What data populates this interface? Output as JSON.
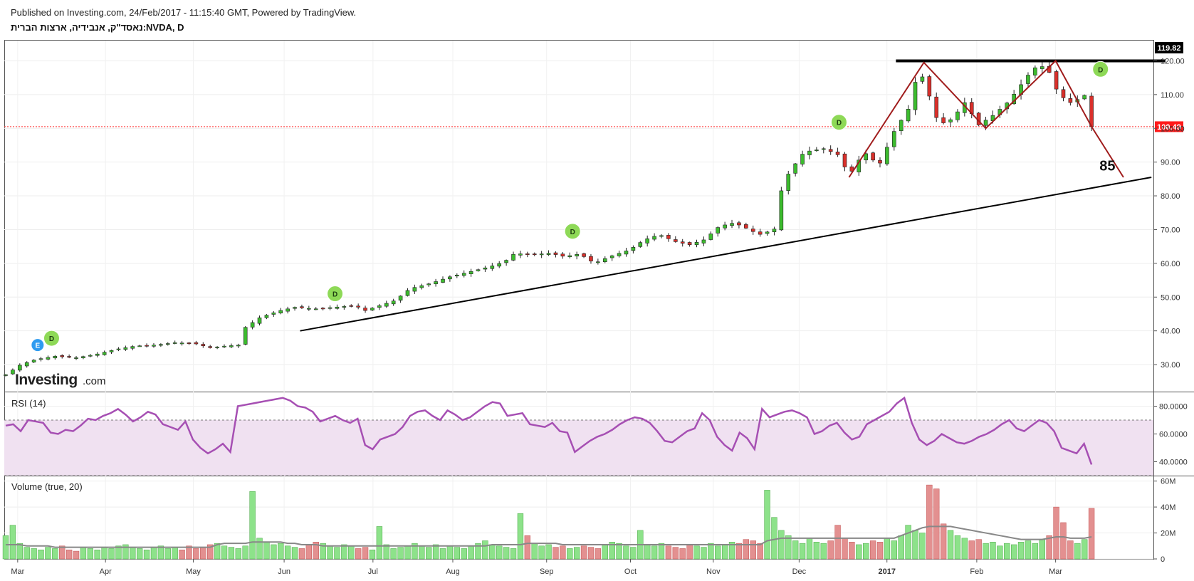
{
  "header": {
    "published": "Published on Investing.com, 24/Feb/2017 - 11:15:40 GMT, Powered by TradingView.",
    "symbol_title": "נאסד\"ק, אנבידיה, ארצות הברית:NVDA, D"
  },
  "watermark": {
    "brand": "Investing",
    "suffix": ".com"
  },
  "colors": {
    "up": "#3cbc2e",
    "down": "#d9302b",
    "rsi_line": "#a64fb3",
    "rsi_band": "#f0e1f1",
    "volume_up": "#8de28a",
    "volume_down": "#e39090",
    "volume_ma": "#888888",
    "pattern": "#a01c1c",
    "trendline": "#000000",
    "dividend_badge": "#8ed957",
    "price_tag_current": "#ff1a1a"
  },
  "chart_data": [
    {
      "type": "candlestick",
      "title": "NVDA, D",
      "ylim": [
        22,
        126
      ],
      "y_ticks": [
        "120.00",
        "110.00",
        "100.00",
        "90.00",
        "80.00",
        "70.00",
        "60.00",
        "50.00",
        "40.00",
        "30.00"
      ],
      "y_tick_values": [
        120,
        110,
        100,
        90,
        80,
        70,
        60,
        50,
        40,
        30
      ],
      "x_months": [
        {
          "label": "Mar",
          "t": 0.12
        },
        {
          "label": "Apr",
          "t": 1.0
        },
        {
          "label": "May",
          "t": 1.88
        },
        {
          "label": "Jun",
          "t": 2.79
        },
        {
          "label": "Jul",
          "t": 3.68
        },
        {
          "label": "Aug",
          "t": 4.48
        },
        {
          "label": "Sep",
          "t": 5.42
        },
        {
          "label": "Oct",
          "t": 6.26
        },
        {
          "label": "Nov",
          "t": 7.09
        },
        {
          "label": "Dec",
          "t": 7.95
        },
        {
          "label": "2017",
          "t": 8.83
        },
        {
          "label": "Feb",
          "t": 9.73
        },
        {
          "label": "Mar",
          "t": 10.52
        }
      ],
      "price_points": [
        [
          0.0,
          27
        ],
        [
          0.15,
          30
        ],
        [
          0.3,
          31.5
        ],
        [
          0.5,
          32.5
        ],
        [
          0.7,
          32
        ],
        [
          0.9,
          33
        ],
        [
          1.1,
          34.5
        ],
        [
          1.3,
          35.5
        ],
        [
          1.5,
          35.8
        ],
        [
          1.7,
          36.5
        ],
        [
          1.9,
          36.2
        ],
        [
          2.05,
          35
        ],
        [
          2.2,
          35.5
        ],
        [
          2.35,
          35.8
        ],
        [
          2.4,
          41
        ],
        [
          2.55,
          44
        ],
        [
          2.75,
          46
        ],
        [
          2.9,
          47
        ],
        [
          3.1,
          46.5
        ],
        [
          3.3,
          47
        ],
        [
          3.5,
          47.5
        ],
        [
          3.6,
          46
        ],
        [
          3.75,
          47.5
        ],
        [
          3.9,
          49
        ],
        [
          4.05,
          52.5
        ],
        [
          4.25,
          54
        ],
        [
          4.45,
          56
        ],
        [
          4.65,
          57.5
        ],
        [
          4.85,
          59
        ],
        [
          5.0,
          60.5
        ],
        [
          5.1,
          63
        ],
        [
          5.25,
          62.5
        ],
        [
          5.45,
          63
        ],
        [
          5.6,
          62
        ],
        [
          5.75,
          62.8
        ],
        [
          5.9,
          60
        ],
        [
          6.05,
          62
        ],
        [
          6.25,
          64
        ],
        [
          6.4,
          67
        ],
        [
          6.55,
          68.5
        ],
        [
          6.7,
          66.5
        ],
        [
          6.85,
          65.5
        ],
        [
          7.0,
          67
        ],
        [
          7.15,
          71
        ],
        [
          7.3,
          72
        ],
        [
          7.45,
          70
        ],
        [
          7.55,
          68.5
        ],
        [
          7.7,
          70
        ],
        [
          7.75,
          80
        ],
        [
          7.85,
          87
        ],
        [
          8.0,
          93
        ],
        [
          8.2,
          94
        ],
        [
          8.35,
          92
        ],
        [
          8.45,
          86
        ],
        [
          8.6,
          93
        ],
        [
          8.75,
          89
        ],
        [
          8.9,
          99
        ],
        [
          9.05,
          106
        ],
        [
          9.15,
          118
        ],
        [
          9.25,
          110
        ],
        [
          9.35,
          101
        ],
        [
          9.5,
          103
        ],
        [
          9.6,
          108
        ],
        [
          9.75,
          101
        ],
        [
          9.9,
          104
        ],
        [
          10.05,
          108
        ],
        [
          10.15,
          112
        ],
        [
          10.25,
          116
        ],
        [
          10.35,
          119
        ],
        [
          10.45,
          117
        ],
        [
          10.55,
          110
        ],
        [
          10.7,
          107
        ],
        [
          10.8,
          111
        ],
        [
          10.88,
          100.5
        ]
      ],
      "current_price": "119.82",
      "last_price": "100.49",
      "resistance_level": 120,
      "annotations": {
        "target_label": "85",
        "dividend_markers": [
          "D",
          "D",
          "D",
          "D",
          "D"
        ],
        "earnings_marker": "E"
      }
    },
    {
      "type": "line",
      "title": "RSI (14)",
      "ylim": [
        30,
        90
      ],
      "y_ticks": [
        "80.0000",
        "60.0000",
        "40.0000"
      ],
      "y_tick_values": [
        80,
        60,
        40
      ],
      "bands": [
        30,
        70
      ],
      "values": [
        66,
        67,
        62,
        70,
        69,
        68,
        61,
        60,
        63,
        62,
        66,
        71,
        70,
        73,
        75,
        78,
        74,
        69,
        72,
        76,
        74,
        67,
        65,
        63,
        69,
        56,
        50,
        46,
        49,
        53,
        47,
        80,
        81,
        82,
        83,
        84,
        85,
        86,
        84,
        80,
        79,
        76,
        69,
        71,
        73,
        70,
        68,
        71,
        52,
        49,
        56,
        58,
        60,
        65,
        73,
        76,
        77,
        73,
        70,
        77,
        74,
        70,
        72,
        76,
        80,
        83,
        82,
        73,
        74,
        75,
        67,
        66,
        65,
        68,
        62,
        61,
        47,
        51,
        55,
        58,
        60,
        63,
        67,
        70,
        72,
        71,
        68,
        62,
        55,
        54,
        58,
        62,
        64,
        75,
        70,
        58,
        52,
        48,
        61,
        57,
        49,
        78,
        72,
        74,
        76,
        77,
        75,
        72,
        60,
        62,
        66,
        68,
        61,
        56,
        58,
        67,
        70,
        73,
        76,
        82,
        86,
        68,
        56,
        52,
        55,
        60,
        57,
        54,
        53,
        55,
        58,
        60,
        63,
        67,
        70,
        64,
        62,
        66,
        70,
        68,
        62,
        50,
        48,
        46,
        53,
        38
      ]
    },
    {
      "type": "bar",
      "title": "Volume (true, 20)",
      "ylim": [
        0,
        62
      ],
      "y_ticks": [
        "60M",
        "40M",
        "20M",
        "0"
      ],
      "y_tick_values": [
        60,
        40,
        20,
        0
      ],
      "values": [
        18,
        26,
        12,
        9,
        8,
        7,
        9,
        8,
        10,
        7,
        6,
        9,
        8,
        7,
        9,
        8,
        10,
        11,
        9,
        8,
        7,
        9,
        10,
        8,
        9,
        7,
        10,
        8,
        9,
        11,
        12,
        10,
        9,
        8,
        10,
        52,
        16,
        13,
        11,
        12,
        10,
        9,
        8,
        11,
        13,
        12,
        10,
        9,
        11,
        10,
        8,
        9,
        7,
        25,
        11,
        8,
        9,
        10,
        12,
        10,
        9,
        11,
        8,
        10,
        9,
        8,
        10,
        12,
        14,
        11,
        10,
        9,
        8,
        35,
        18,
        12,
        10,
        11,
        9,
        10,
        8,
        9,
        10,
        9,
        8,
        11,
        13,
        12,
        10,
        9,
        22,
        11,
        10,
        12,
        10,
        9,
        8,
        11,
        10,
        9,
        12,
        10,
        11,
        13,
        12,
        15,
        14,
        12,
        53,
        32,
        22,
        18,
        14,
        12,
        16,
        13,
        12,
        14,
        26,
        16,
        13,
        11,
        12,
        14,
        13,
        16,
        14,
        18,
        26,
        22,
        20,
        57,
        54,
        27,
        22,
        18,
        16,
        14,
        15,
        12,
        13,
        10,
        12,
        11,
        13,
        14,
        12,
        15,
        18,
        40,
        28,
        14,
        12,
        15,
        39
      ],
      "ma": [
        11,
        11,
        11,
        10,
        10,
        10,
        10,
        9,
        9,
        9,
        9,
        9,
        9,
        9,
        9,
        9,
        9,
        9,
        9,
        9,
        9,
        9,
        9,
        9,
        9,
        9,
        9,
        9,
        9,
        9,
        11,
        12,
        12,
        12,
        12,
        13,
        13,
        13,
        13,
        13,
        12,
        12,
        11,
        11,
        11,
        10,
        10,
        10,
        10,
        10,
        10,
        10,
        10,
        10,
        10,
        10,
        10,
        10,
        10,
        10,
        10,
        10,
        10,
        10,
        10,
        10,
        10,
        10,
        10,
        11,
        11,
        11,
        11,
        11,
        12,
        12,
        12,
        12,
        12,
        11,
        11,
        11,
        11,
        11,
        11,
        11,
        11,
        11,
        11,
        11,
        11,
        11,
        11,
        11,
        11,
        11,
        11,
        11,
        11,
        11,
        11,
        11,
        11,
        11,
        11,
        11,
        11,
        11,
        14,
        15,
        16,
        16,
        16,
        16,
        16,
        16,
        16,
        16,
        16,
        16,
        16,
        16,
        16,
        16,
        16,
        16,
        16,
        18,
        20,
        22,
        24,
        25,
        25,
        25,
        25,
        24,
        23,
        22,
        21,
        20,
        19,
        18,
        17,
        16,
        15,
        15,
        15,
        15,
        16,
        17,
        17,
        16,
        16,
        16,
        17
      ]
    }
  ]
}
